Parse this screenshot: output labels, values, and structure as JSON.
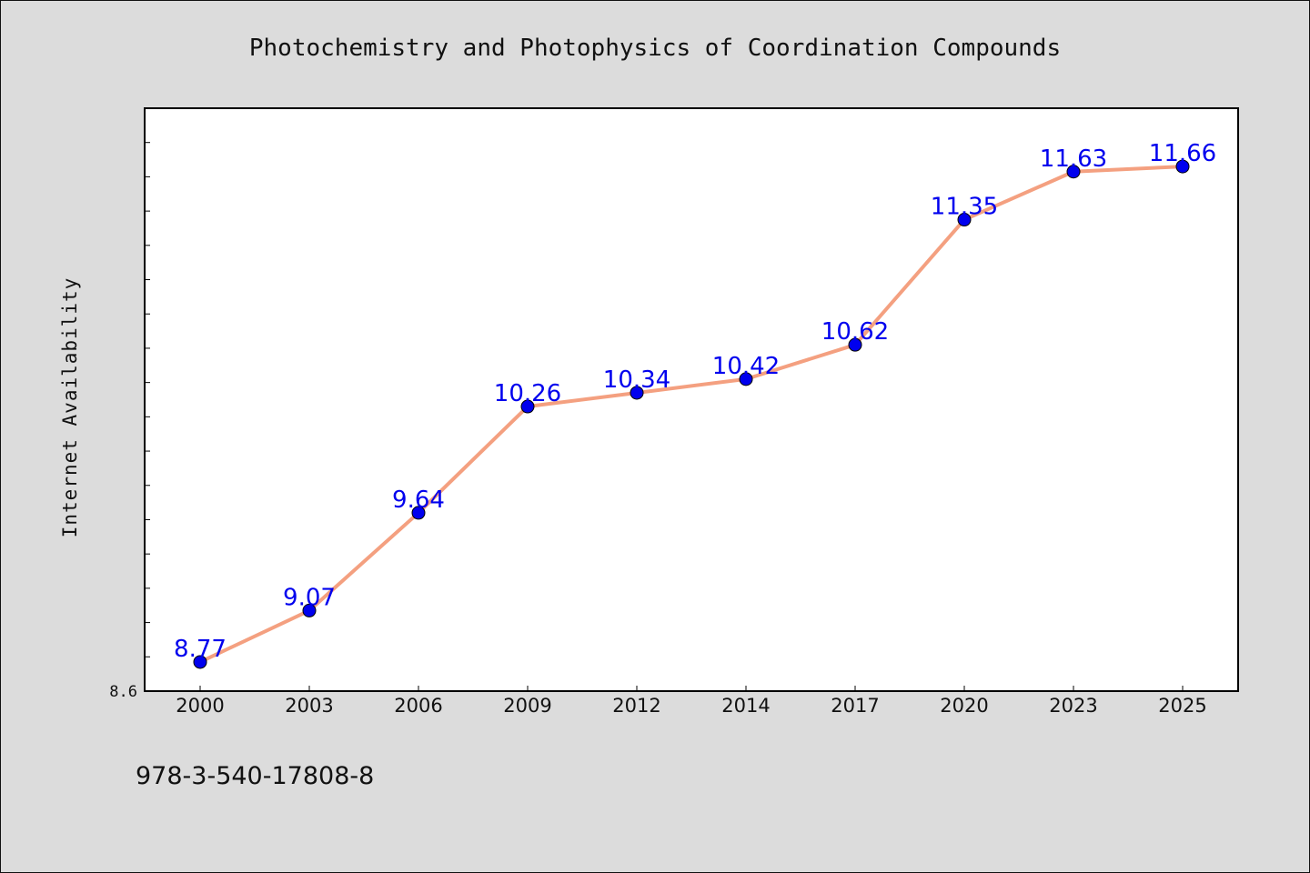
{
  "colors": {
    "background": "#dcdcdc",
    "plot_background": "#ffffff",
    "line": "#f4a080",
    "marker": "#0000ee",
    "data_label": "#0000ee",
    "axis": "#000000"
  },
  "footer": {
    "isbn": "978-3-540-17808-8"
  },
  "chart_data": {
    "type": "line",
    "title": "Photochemistry and Photophysics of Coordination Compounds",
    "xlabel": "",
    "ylabel": "Internet Availability",
    "categories": [
      "2000",
      "2003",
      "2006",
      "2009",
      "2012",
      "2014",
      "2017",
      "2020",
      "2023",
      "2025"
    ],
    "series": [
      {
        "values": [
          8.77,
          9.07,
          9.64,
          10.26,
          10.34,
          10.42,
          10.62,
          11.35,
          11.63,
          11.66
        ]
      }
    ],
    "data_labels": [
      "8.77",
      "9.07",
      "9.64",
      "10.26",
      "10.34",
      "10.42",
      "10.62",
      "11.35",
      "11.63",
      "11.66"
    ],
    "ylim": [
      8.6,
      12.0
    ],
    "yticks_labeled": [
      "8.6"
    ],
    "ytick_step_minor": 0.2,
    "grid": false,
    "legend": "none",
    "markers": true
  }
}
